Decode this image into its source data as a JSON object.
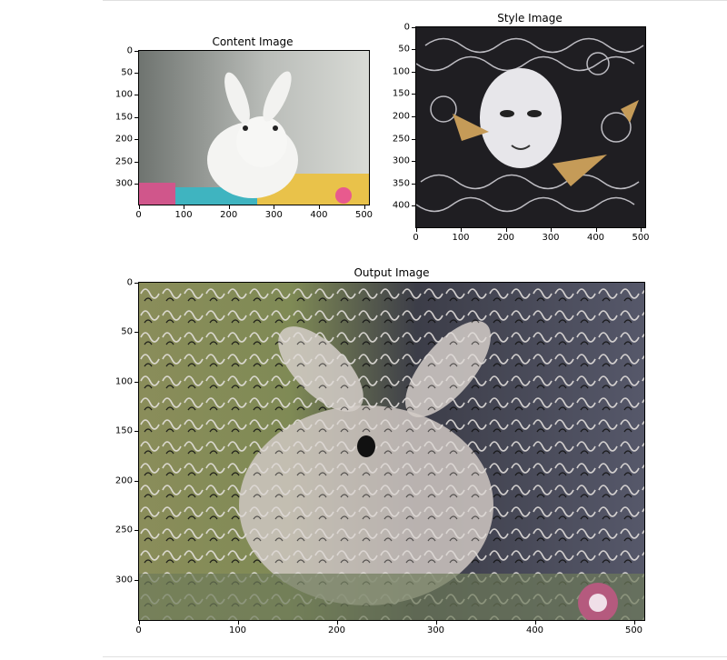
{
  "content": {
    "title": "Content Image",
    "x_ticks": [
      "0",
      "100",
      "200",
      "300",
      "400",
      "500"
    ],
    "y_ticks": [
      "0",
      "50",
      "100",
      "150",
      "200",
      "250",
      "300"
    ]
  },
  "style": {
    "title": "Style Image",
    "x_ticks": [
      "0",
      "100",
      "200",
      "300",
      "400",
      "500"
    ],
    "y_ticks": [
      "0",
      "50",
      "100",
      "150",
      "200",
      "250",
      "300",
      "350",
      "400"
    ]
  },
  "output": {
    "title": "Output Image",
    "x_ticks": [
      "0",
      "100",
      "200",
      "300",
      "400",
      "500"
    ],
    "y_ticks": [
      "0",
      "50",
      "100",
      "150",
      "200",
      "250",
      "300"
    ]
  }
}
